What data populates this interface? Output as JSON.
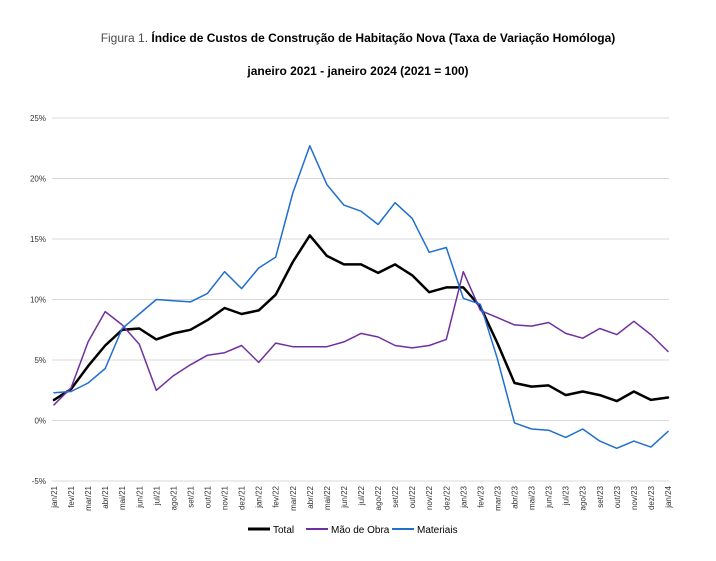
{
  "header": {
    "figure_label": "Figura 1.",
    "title": "Índice de Custos de Construção de Habitação Nova (Taxa de Variação Homóloga)",
    "subtitle": "janeiro 2021 - janeiro 2024 (2021 = 100)"
  },
  "chart_data": {
    "type": "line",
    "title": "Índice de Custos de Construção de Habitação Nova (Taxa de Variação Homóloga)",
    "subtitle": "janeiro 2021 - janeiro 2024 (2021 = 100)",
    "xlabel": "",
    "ylabel": "",
    "ylim": [
      -5,
      25
    ],
    "yticks": [
      -5,
      0,
      5,
      10,
      15,
      20,
      25
    ],
    "ytick_labels": [
      "-5%",
      "0%",
      "5%",
      "10%",
      "15%",
      "20%",
      "25%"
    ],
    "grid": true,
    "legend_position": "bottom",
    "categories": [
      "jan/21",
      "fev/21",
      "mar/21",
      "abr/21",
      "mai/21",
      "jun/21",
      "jul/21",
      "ago/21",
      "set/21",
      "out/21",
      "nov/21",
      "dez/21",
      "jan/22",
      "fev/22",
      "mar/22",
      "abr/22",
      "mai/22",
      "jun/22",
      "jul/22",
      "ago/22",
      "set/22",
      "out/22",
      "nov/22",
      "dez/22",
      "jan/23",
      "fev/23",
      "mar/23",
      "abr/23",
      "mai/23",
      "jun/23",
      "jul/23",
      "ago/23",
      "set/23",
      "out/23",
      "nov/23",
      "dez/23",
      "jan/24"
    ],
    "series": [
      {
        "name": "Total",
        "color": "#000000",
        "width": 2.5,
        "values": [
          1.7,
          2.6,
          4.5,
          6.2,
          7.5,
          7.6,
          6.7,
          7.2,
          7.5,
          8.3,
          9.3,
          8.8,
          9.1,
          10.4,
          13.1,
          15.3,
          13.6,
          12.9,
          12.9,
          12.2,
          12.9,
          12.0,
          10.6,
          11.0,
          11.0,
          9.4,
          6.4,
          3.1,
          2.8,
          2.9,
          2.1,
          2.4,
          2.1,
          1.6,
          2.4,
          1.7,
          1.9
        ]
      },
      {
        "name": "Mão de Obra",
        "color": "#7030a0",
        "width": 1.5,
        "values": [
          1.3,
          2.7,
          6.5,
          9.0,
          7.9,
          6.3,
          2.5,
          3.7,
          4.6,
          5.4,
          5.6,
          6.2,
          4.8,
          6.4,
          6.1,
          6.1,
          6.1,
          6.5,
          7.2,
          6.9,
          6.2,
          6.0,
          6.2,
          6.7,
          12.3,
          9.1,
          8.5,
          7.9,
          7.8,
          8.1,
          7.2,
          6.8,
          7.6,
          7.1,
          8.2,
          7.1,
          5.7
        ]
      },
      {
        "name": "Materiais",
        "color": "#1f6fcf",
        "width": 1.5,
        "values": [
          2.3,
          2.4,
          3.1,
          4.3,
          7.6,
          8.8,
          10.0,
          9.9,
          9.8,
          10.5,
          12.3,
          10.9,
          12.6,
          13.5,
          18.8,
          22.7,
          19.5,
          17.8,
          17.3,
          16.2,
          18.0,
          16.7,
          13.9,
          14.3,
          10.1,
          9.6,
          5.1,
          -0.2,
          -0.7,
          -0.8,
          -1.4,
          -0.7,
          -1.7,
          -2.3,
          -1.7,
          -2.2,
          -0.9
        ]
      }
    ]
  }
}
